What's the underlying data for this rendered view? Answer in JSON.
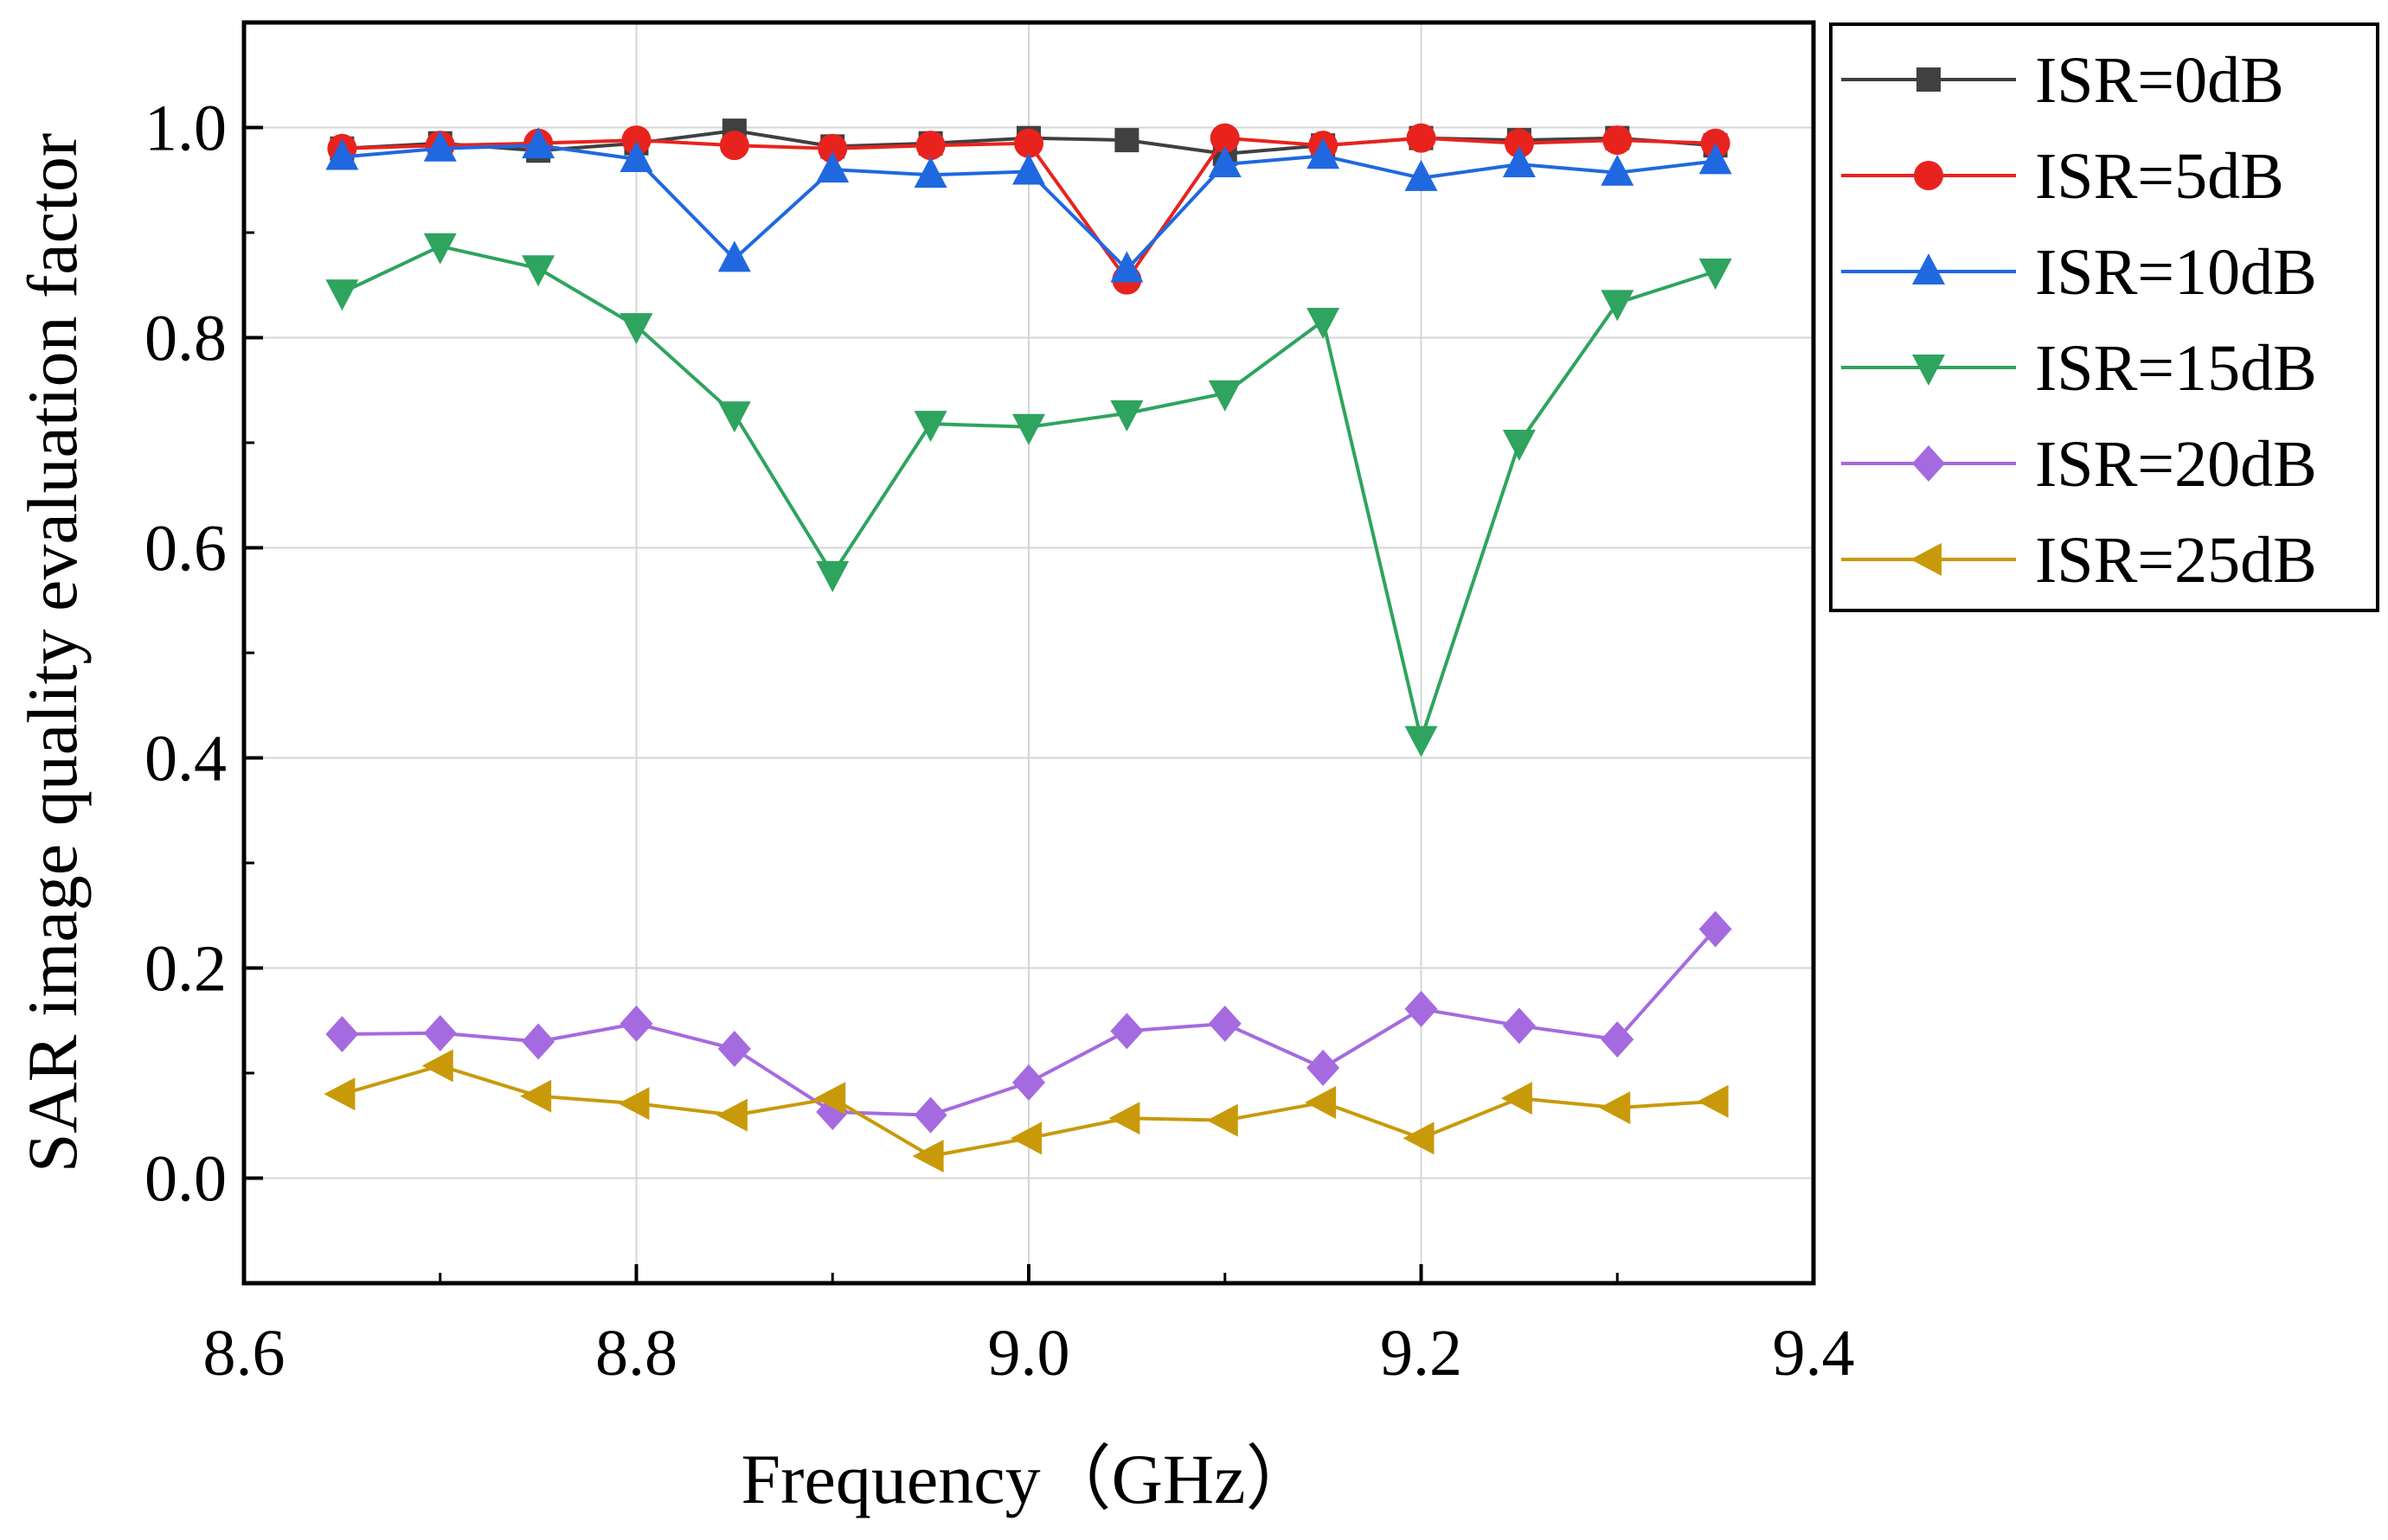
{
  "chart_data": {
    "type": "line",
    "title": "",
    "xlabel": "Frequency（GHz）",
    "ylabel": "SAR image quality evaluation factor",
    "xlim": [
      8.6,
      9.4
    ],
    "ylim": [
      -0.1,
      1.1
    ],
    "xticks": [
      8.6,
      8.8,
      9.0,
      9.2,
      9.4
    ],
    "xtick_labels": [
      "8.6",
      "8.8",
      "9.0",
      "9.2",
      "9.4"
    ],
    "yticks": [
      0.0,
      0.2,
      0.4,
      0.6,
      0.8,
      1.0
    ],
    "ytick_labels": [
      "0.0",
      "0.2",
      "0.4",
      "0.6",
      "0.8",
      "1.0"
    ],
    "grid": true,
    "legend_position": "outside-top-right",
    "x": [
      8.65,
      8.7,
      8.75,
      8.8,
      8.85,
      8.9,
      8.95,
      9.0,
      9.05,
      9.1,
      9.15,
      9.2,
      9.25,
      9.3,
      9.35
    ],
    "series": [
      {
        "name": "ISR=0dB",
        "color": "#404040",
        "marker": "square",
        "values": [
          0.98,
          0.985,
          0.978,
          0.985,
          0.997,
          0.982,
          0.985,
          0.99,
          0.988,
          0.975,
          0.983,
          0.99,
          0.988,
          0.99,
          0.983
        ]
      },
      {
        "name": "ISR=5dB",
        "color": "#e8231e",
        "marker": "circle",
        "values": [
          0.98,
          0.983,
          0.985,
          0.988,
          0.983,
          0.98,
          0.983,
          0.985,
          0.855,
          0.99,
          0.983,
          0.99,
          0.985,
          0.988,
          0.985
        ]
      },
      {
        "name": "ISR=10dB",
        "color": "#1f68e0",
        "marker": "triangle-up",
        "values": [
          0.972,
          0.98,
          0.983,
          0.97,
          0.875,
          0.96,
          0.955,
          0.958,
          0.865,
          0.965,
          0.973,
          0.952,
          0.965,
          0.957,
          0.968
        ]
      },
      {
        "name": "ISR=15dB",
        "color": "#2ea45e",
        "marker": "triangle-down",
        "values": [
          0.843,
          0.887,
          0.866,
          0.811,
          0.727,
          0.575,
          0.718,
          0.715,
          0.728,
          0.747,
          0.816,
          0.418,
          0.7,
          0.833,
          0.863
        ]
      },
      {
        "name": "ISR=20dB",
        "color": "#a56ae0",
        "marker": "diamond",
        "values": [
          0.137,
          0.138,
          0.13,
          0.147,
          0.123,
          0.063,
          0.06,
          0.091,
          0.14,
          0.147,
          0.105,
          0.161,
          0.145,
          0.132,
          0.237
        ]
      },
      {
        "name": "ISR=25dB",
        "color": "#c89a0a",
        "marker": "triangle-left",
        "values": [
          0.08,
          0.107,
          0.078,
          0.071,
          0.06,
          0.076,
          0.021,
          0.038,
          0.057,
          0.055,
          0.072,
          0.038,
          0.076,
          0.067,
          0.073
        ]
      }
    ]
  }
}
